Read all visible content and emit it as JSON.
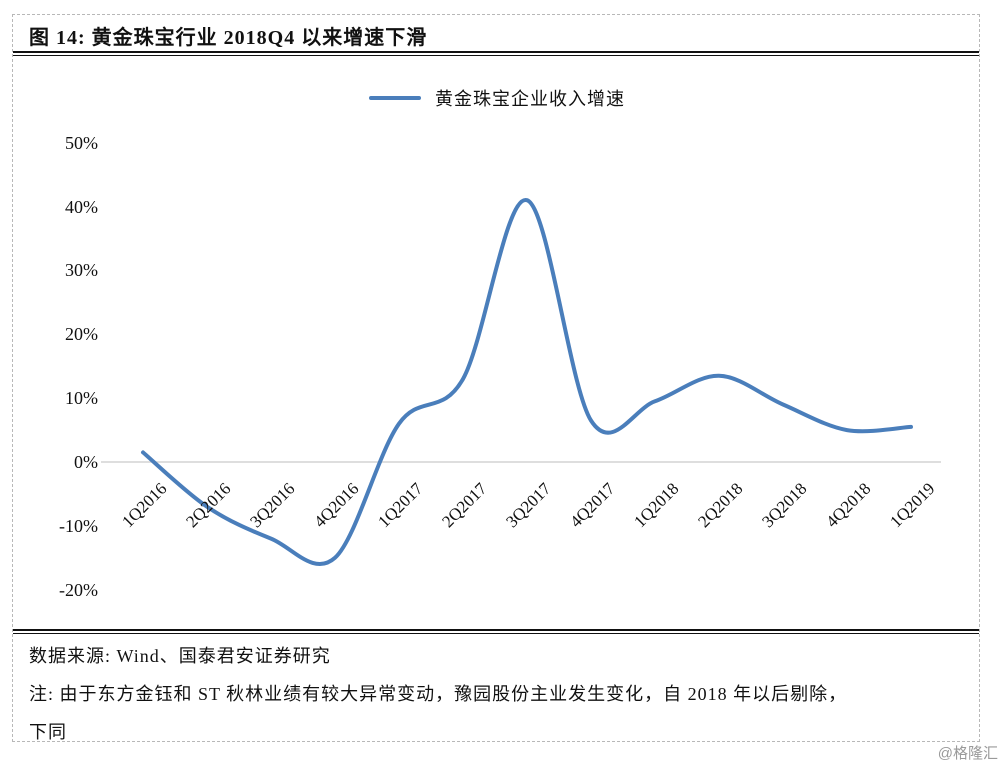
{
  "figure": {
    "title": "图 14: 黄金珠宝行业 2018Q4 以来增速下滑",
    "source_label": "数据来源: Wind、国泰君安证券研究",
    "note_lines": [
      "注: 由于东方金钰和 ST 秋林业绩有较大异常变动，豫园股份主业发生变化，自 2018 年以后剔除，",
      "下同"
    ],
    "watermark": "@格隆汇"
  },
  "chart_data": {
    "type": "line",
    "title": "黄金珠宝行业 2018Q4 以来增速下滑",
    "legend": [
      "黄金珠宝企业收入增速"
    ],
    "legend_position": "top-center",
    "categories": [
      "1Q2016",
      "2Q2016",
      "3Q2016",
      "4Q2016",
      "1Q2017",
      "2Q2017",
      "3Q2017",
      "4Q2017",
      "1Q2018",
      "2Q2018",
      "3Q2018",
      "4Q2018",
      "1Q2019"
    ],
    "series": [
      {
        "name": "黄金珠宝企业收入增速",
        "values": [
          1.5,
          -7,
          -12,
          -15,
          6,
          13,
          41,
          6.5,
          9.5,
          13.5,
          9,
          5,
          5.5
        ]
      }
    ],
    "unit": "%",
    "ylim": [
      -20,
      50
    ],
    "ytick_labels": [
      "50%",
      "40%",
      "30%",
      "20%",
      "10%",
      "0%",
      "-10%",
      "-20%"
    ],
    "grid": "zero-line-only",
    "line_color": "#4a7ebb",
    "zero_line_color": "#d4d4d4",
    "smooth": true
  }
}
